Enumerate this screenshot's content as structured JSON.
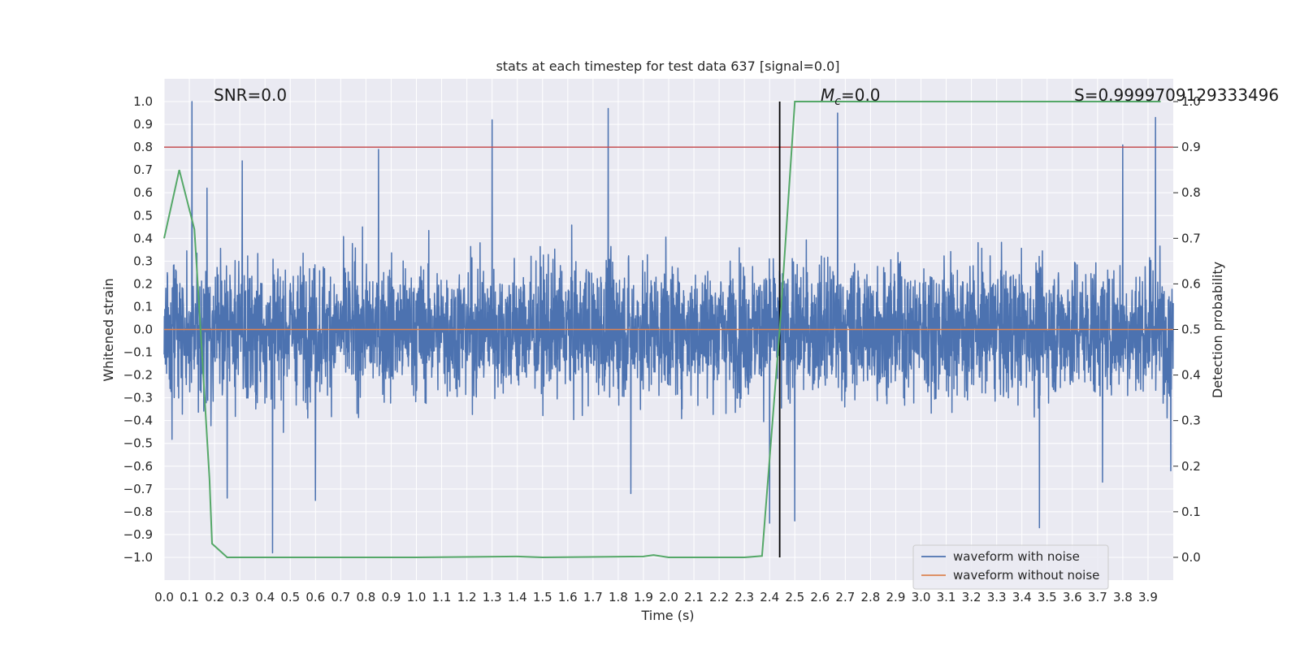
{
  "chart_data": {
    "type": "line",
    "title": "stats at each timestep for test data 637 [signal=0.0]",
    "xlabel": "Time (s)",
    "ylabel": "Whitened strain",
    "y2label": "Detection probability",
    "xlim": [
      0.0,
      4.0
    ],
    "ylim": [
      -1.1,
      1.1
    ],
    "y2lim": [
      -0.05,
      1.05
    ],
    "x_ticks": [
      0.0,
      0.1,
      0.2,
      0.3,
      0.4,
      0.5,
      0.6,
      0.7,
      0.8,
      0.9,
      1.0,
      1.1,
      1.2,
      1.3,
      1.4,
      1.5,
      1.6,
      1.7,
      1.8,
      1.9,
      2.0,
      2.1,
      2.2,
      2.3,
      2.4,
      2.5,
      2.6,
      2.7,
      2.8,
      2.9,
      3.0,
      3.1,
      3.2,
      3.3,
      3.4,
      3.5,
      3.6,
      3.7,
      3.8,
      3.9
    ],
    "x_tick_labels": [
      "0.0",
      "0.1",
      "0.2",
      "0.3",
      "0.4",
      "0.5",
      "0.6",
      "0.7",
      "0.8",
      "0.9",
      "1.0",
      "1.1",
      "1.2",
      "1.3",
      "1.4",
      "1.5",
      "1.6",
      "1.7",
      "1.8",
      "1.9",
      "2.0",
      "2.1",
      "2.2",
      "2.3",
      "2.4",
      "2.5",
      "2.6",
      "2.7",
      "2.8",
      "2.9",
      "3.0",
      "3.1",
      "3.2",
      "3.3",
      "3.4",
      "3.5",
      "3.6",
      "3.7",
      "3.8",
      "3.9"
    ],
    "y_ticks": [
      1.0,
      0.9,
      0.8,
      0.7,
      0.6,
      0.5,
      0.4,
      0.3,
      0.2,
      0.1,
      0.0,
      -0.1,
      -0.2,
      -0.3,
      -0.4,
      -0.5,
      -0.6,
      -0.7,
      -0.8,
      -0.9,
      -1.0
    ],
    "y_tick_labels": [
      "1.0",
      "0.9",
      "0.8",
      "0.7",
      "0.6",
      "0.5",
      "0.4",
      "0.3",
      "0.2",
      "0.1",
      "0.0",
      "−0.1",
      "−0.2",
      "−0.3",
      "−0.4",
      "−0.5",
      "−0.6",
      "−0.7",
      "−0.8",
      "−0.9",
      "−1.0"
    ],
    "y2_ticks": [
      1.0,
      0.9,
      0.8,
      0.7,
      0.6,
      0.5,
      0.4,
      0.3,
      0.2,
      0.1,
      0.0
    ],
    "y2_tick_labels": [
      "1.0",
      "0.9",
      "0.8",
      "0.7",
      "0.6",
      "0.5",
      "0.4",
      "0.3",
      "0.2",
      "0.1",
      "0.0"
    ],
    "grid": true,
    "legend_position": "lower-right",
    "annotations": {
      "snr": "SNR=0.0",
      "mc_symbol": "M",
      "mc_sub": "c",
      "mc_value": "=0.0",
      "score": "S=0.9999709129333496"
    },
    "threshold": {
      "axis": "y2",
      "value": 0.9,
      "color": "#c44e52"
    },
    "marker_line": {
      "x": 2.44,
      "y2_range": [
        0.0,
        1.0
      ],
      "color": "#000000"
    },
    "series": [
      {
        "name": "waveform with noise",
        "axis": "y",
        "color": "#4c72b0",
        "kind": "dense_noise",
        "n_points": 4096,
        "x_range": [
          0.0,
          4.0
        ],
        "typical_amplitude": 0.28,
        "peaks": [
          {
            "x": 0.11,
            "y": 1.0
          },
          {
            "x": 0.31,
            "y": 0.74
          },
          {
            "x": 0.85,
            "y": 0.79
          },
          {
            "x": 1.3,
            "y": 0.92
          },
          {
            "x": 1.76,
            "y": 0.97
          },
          {
            "x": 2.67,
            "y": 0.95
          },
          {
            "x": 3.8,
            "y": 0.81
          },
          {
            "x": 3.93,
            "y": 0.93
          },
          {
            "x": 0.17,
            "y": 0.62
          },
          {
            "x": 0.43,
            "y": -0.98
          },
          {
            "x": 0.25,
            "y": -0.74
          },
          {
            "x": 0.6,
            "y": -0.75
          },
          {
            "x": 1.85,
            "y": -0.72
          },
          {
            "x": 2.4,
            "y": -0.85
          },
          {
            "x": 2.5,
            "y": -0.84
          },
          {
            "x": 3.47,
            "y": -0.87
          },
          {
            "x": 3.72,
            "y": -0.67
          },
          {
            "x": 3.99,
            "y": -0.62
          }
        ]
      },
      {
        "name": "waveform without noise",
        "axis": "y",
        "color": "#dd8452",
        "x": [
          0.0,
          4.0
        ],
        "y": [
          0.0,
          0.0
        ]
      },
      {
        "name": "detection probability",
        "axis": "y2",
        "color": "#55a868",
        "x": [
          0.0,
          0.06,
          0.12,
          0.15,
          0.18,
          0.19,
          0.25,
          0.5,
          1.0,
          1.4,
          1.5,
          1.9,
          1.94,
          2.0,
          2.3,
          2.37,
          2.44,
          2.5,
          3.95
        ],
        "y": [
          0.7,
          0.85,
          0.72,
          0.45,
          0.17,
          0.03,
          0.0,
          0.0,
          0.0,
          0.002,
          0.0,
          0.002,
          0.005,
          0.0,
          0.0,
          0.003,
          0.5,
          1.0,
          1.0
        ]
      }
    ],
    "legend_entries": [
      "waveform with noise",
      "waveform without noise"
    ]
  }
}
